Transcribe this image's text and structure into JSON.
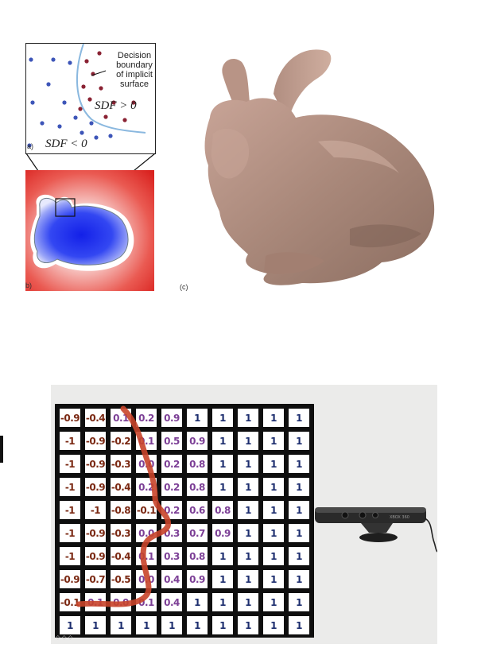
{
  "inset": {
    "annotation": "Decision boundary of implicit surface",
    "annotation_lines": [
      "Decision",
      "boundary",
      "of implicit",
      "surface"
    ],
    "sdf_positive": "SDF > 0",
    "sdf_negative": "SDF < 0",
    "panel_label": "a)"
  },
  "heatmap": {
    "panel_label": "b)",
    "colors": {
      "outside": "#e4332e",
      "boundary": "#ffffff",
      "inside": "#2a3df0"
    }
  },
  "bunny": {
    "panel_label": "(c)",
    "color": "#b28f80"
  },
  "sdf_grid": {
    "rows": [
      [
        "-0.9",
        "-0.4",
        "0.1",
        "0.2",
        "0.9",
        "1",
        "1",
        "1",
        "1",
        "1"
      ],
      [
        "-1",
        "-0.9",
        "-0.2",
        "0.1",
        "0.5",
        "0.9",
        "1",
        "1",
        "1",
        "1"
      ],
      [
        "-1",
        "-0.9",
        "-0.3",
        "0.0",
        "0.2",
        "0.8",
        "1",
        "1",
        "1",
        "1"
      ],
      [
        "-1",
        "-0.9",
        "-0.4",
        "0.2",
        "0.2",
        "0.8",
        "1",
        "1",
        "1",
        "1"
      ],
      [
        "-1",
        "-1",
        "-0.8",
        "-0.1",
        "0.2",
        "0.6",
        "0.8",
        "1",
        "1",
        "1"
      ],
      [
        "-1",
        "-0.9",
        "-0.3",
        "0.0",
        "0.3",
        "0.7",
        "0.9",
        "1",
        "1",
        "1"
      ],
      [
        "-1",
        "-0.9",
        "-0.4",
        "0.1",
        "0.3",
        "0.8",
        "1",
        "1",
        "1",
        "1"
      ],
      [
        "-0.9",
        "-0.7",
        "-0.5",
        "0.0",
        "0.4",
        "0.9",
        "1",
        "1",
        "1",
        "1"
      ],
      [
        "-0.1",
        "0.1",
        "0.0",
        "0.1",
        "0.4",
        "1",
        "1",
        "1",
        "1",
        "1"
      ],
      [
        "1",
        "1",
        "1",
        "1",
        "1",
        "1",
        "1",
        "1",
        "1",
        "1"
      ]
    ],
    "colors": {
      "negative": "#7a2812",
      "fractional_positive": "#7c3f96",
      "one": "#1c2d6e",
      "curve": "#c8442a"
    }
  },
  "device": {
    "name": "kinect-sensor",
    "brand_text": "XBOX 360"
  }
}
